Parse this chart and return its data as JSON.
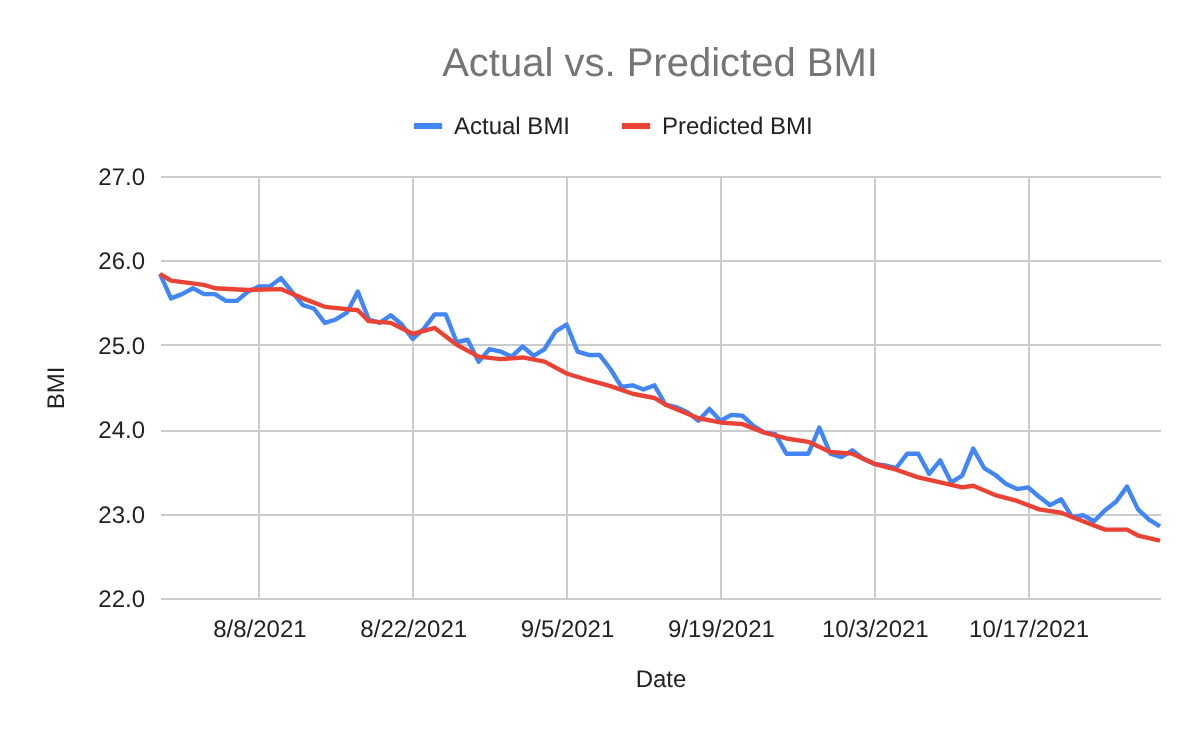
{
  "chart_data": {
    "type": "line",
    "title": "Actual vs. Predicted BMI",
    "xlabel": "Date",
    "ylabel": "BMI",
    "xlim": [
      "2021-07-30",
      "2021-10-29"
    ],
    "xticks": [
      {
        "value": "2021-08-08",
        "label": "8/8/2021"
      },
      {
        "value": "2021-08-22",
        "label": "8/22/2021"
      },
      {
        "value": "2021-09-05",
        "label": "9/5/2021"
      },
      {
        "value": "2021-09-19",
        "label": "9/19/2021"
      },
      {
        "value": "2021-10-03",
        "label": "10/3/2021"
      },
      {
        "value": "2021-10-17",
        "label": "10/17/2021"
      }
    ],
    "ylim": [
      22,
      27
    ],
    "yticks": [
      {
        "value": 22,
        "label": "22.0"
      },
      {
        "value": 23,
        "label": "23.0"
      },
      {
        "value": 24,
        "label": "24.0"
      },
      {
        "value": 25,
        "label": "25.0"
      },
      {
        "value": 26,
        "label": "26.0"
      },
      {
        "value": 27,
        "label": "27.0"
      }
    ],
    "grid": true,
    "legend": "top",
    "marker": "none",
    "line_style": "solid",
    "series": [
      {
        "name": "Actual BMI",
        "color": "#4285f4",
        "x": [
          "2021-07-30",
          "2021-07-31",
          "2021-08-01",
          "2021-08-02",
          "2021-08-03",
          "2021-08-04",
          "2021-08-05",
          "2021-08-06",
          "2021-08-07",
          "2021-08-08",
          "2021-08-09",
          "2021-08-10",
          "2021-08-11",
          "2021-08-12",
          "2021-08-13",
          "2021-08-14",
          "2021-08-15",
          "2021-08-16",
          "2021-08-17",
          "2021-08-18",
          "2021-08-19",
          "2021-08-20",
          "2021-08-21",
          "2021-08-22",
          "2021-08-23",
          "2021-08-24",
          "2021-08-25",
          "2021-08-26",
          "2021-08-27",
          "2021-08-28",
          "2021-08-29",
          "2021-08-30",
          "2021-08-31",
          "2021-09-01",
          "2021-09-02",
          "2021-09-03",
          "2021-09-04",
          "2021-09-05",
          "2021-09-06",
          "2021-09-07",
          "2021-09-08",
          "2021-09-09",
          "2021-09-10",
          "2021-09-11",
          "2021-09-12",
          "2021-09-13",
          "2021-09-14",
          "2021-09-15",
          "2021-09-16",
          "2021-09-17",
          "2021-09-18",
          "2021-09-19",
          "2021-09-20",
          "2021-09-21",
          "2021-09-22",
          "2021-09-23",
          "2021-09-24",
          "2021-09-25",
          "2021-09-26",
          "2021-09-27",
          "2021-09-28",
          "2021-09-29",
          "2021-09-30",
          "2021-10-01",
          "2021-10-02",
          "2021-10-03",
          "2021-10-04",
          "2021-10-05",
          "2021-10-06",
          "2021-10-07",
          "2021-10-08",
          "2021-10-09",
          "2021-10-10",
          "2021-10-11",
          "2021-10-12",
          "2021-10-13",
          "2021-10-14",
          "2021-10-15",
          "2021-10-16",
          "2021-10-17",
          "2021-10-18",
          "2021-10-19",
          "2021-10-20",
          "2021-10-21",
          "2021-10-22",
          "2021-10-23",
          "2021-10-24",
          "2021-10-25",
          "2021-10-26",
          "2021-10-27",
          "2021-10-28",
          "2021-10-29"
        ],
        "values": [
          25.84,
          25.55,
          25.6,
          25.67,
          25.6,
          25.6,
          25.52,
          25.52,
          25.63,
          25.69,
          25.69,
          25.79,
          25.63,
          25.47,
          25.43,
          25.26,
          25.3,
          25.38,
          25.63,
          25.3,
          25.26,
          25.35,
          25.24,
          25.07,
          25.19,
          25.36,
          25.36,
          25.03,
          25.06,
          24.8,
          24.95,
          24.92,
          24.86,
          24.98,
          24.87,
          24.95,
          25.16,
          25.24,
          24.92,
          24.88,
          24.88,
          24.71,
          24.5,
          24.52,
          24.47,
          24.52,
          24.29,
          24.26,
          24.2,
          24.1,
          24.24,
          24.1,
          24.17,
          24.16,
          24.04,
          23.96,
          23.94,
          23.71,
          23.71,
          23.71,
          24.02,
          23.71,
          23.67,
          23.75,
          23.65,
          23.59,
          23.57,
          23.54,
          23.71,
          23.71,
          23.47,
          23.63,
          23.37,
          23.45,
          23.77,
          23.54,
          23.46,
          23.35,
          23.29,
          23.31,
          23.2,
          23.1,
          23.17,
          22.96,
          22.98,
          22.91,
          23.04,
          23.14,
          23.32,
          23.05,
          22.93,
          22.85
        ]
      },
      {
        "name": "Predicted BMI",
        "color": "#ea4335",
        "x": [
          "2021-07-30",
          "2021-07-31",
          "2021-08-03",
          "2021-08-04",
          "2021-08-07",
          "2021-08-10",
          "2021-08-12",
          "2021-08-14",
          "2021-08-17",
          "2021-08-18",
          "2021-08-20",
          "2021-08-22",
          "2021-08-24",
          "2021-08-26",
          "2021-08-28",
          "2021-08-30",
          "2021-09-01",
          "2021-09-03",
          "2021-09-05",
          "2021-09-07",
          "2021-09-09",
          "2021-09-11",
          "2021-09-13",
          "2021-09-14",
          "2021-09-17",
          "2021-09-19",
          "2021-09-21",
          "2021-09-23",
          "2021-09-25",
          "2021-09-27",
          "2021-09-29",
          "2021-10-01",
          "2021-10-03",
          "2021-10-05",
          "2021-10-07",
          "2021-10-09",
          "2021-10-11",
          "2021-10-12",
          "2021-10-14",
          "2021-10-16",
          "2021-10-18",
          "2021-10-20",
          "2021-10-22",
          "2021-10-24",
          "2021-10-26",
          "2021-10-27",
          "2021-10-29"
        ],
        "values": [
          25.84,
          25.76,
          25.71,
          25.67,
          25.65,
          25.66,
          25.55,
          25.45,
          25.41,
          25.28,
          25.26,
          25.13,
          25.2,
          25.0,
          24.86,
          24.83,
          24.85,
          24.8,
          24.66,
          24.58,
          24.51,
          24.42,
          24.37,
          24.29,
          24.13,
          24.08,
          24.06,
          23.96,
          23.89,
          23.85,
          23.73,
          23.71,
          23.59,
          23.52,
          23.43,
          23.37,
          23.31,
          23.33,
          23.22,
          23.15,
          23.05,
          23.01,
          22.91,
          22.81,
          22.81,
          22.74,
          22.68
        ]
      }
    ]
  }
}
